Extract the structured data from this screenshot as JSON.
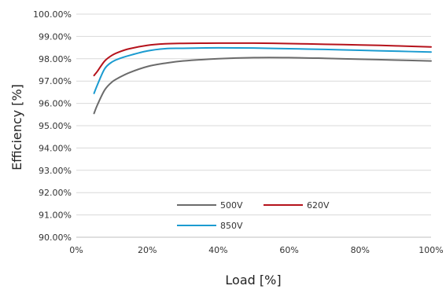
{
  "chart_data": {
    "type": "line",
    "title": "",
    "xlabel": "Load [%]",
    "ylabel": "Efficiency [%]",
    "xlim": [
      0,
      100
    ],
    "ylim": [
      90,
      100
    ],
    "x_ticks": [
      0,
      20,
      40,
      60,
      80,
      100
    ],
    "x_tick_labels": [
      "0%",
      "20%",
      "40%",
      "60%",
      "80%",
      "100%"
    ],
    "y_ticks": [
      90,
      91,
      92,
      93,
      94,
      95,
      96,
      97,
      98,
      99,
      100
    ],
    "y_tick_labels": [
      "90.00%",
      "91.00%",
      "92.00%",
      "93.00%",
      "94.00%",
      "95.00%",
      "96.00%",
      "97.00%",
      "98.00%",
      "99.00%",
      "100.00%"
    ],
    "grid": "horizontal",
    "legend_position": "bottom-center inside plot",
    "series": [
      {
        "name": "500V",
        "color": "#6b6b6b",
        "x": [
          5,
          6,
          8,
          10,
          12,
          15,
          20,
          25,
          30,
          40,
          50,
          60,
          70,
          80,
          90,
          100
        ],
        "y": [
          95.55,
          95.95,
          96.6,
          96.95,
          97.15,
          97.38,
          97.65,
          97.8,
          97.9,
          98.0,
          98.05,
          98.05,
          98.02,
          97.98,
          97.94,
          97.9
        ]
      },
      {
        "name": "620V",
        "color": "#b5121b",
        "x": [
          5,
          6,
          8,
          10,
          12,
          15,
          20,
          25,
          30,
          40,
          50,
          60,
          70,
          80,
          90,
          100
        ],
        "y": [
          97.25,
          97.45,
          97.9,
          98.15,
          98.3,
          98.45,
          98.6,
          98.67,
          98.69,
          98.7,
          98.7,
          98.68,
          98.65,
          98.62,
          98.58,
          98.53
        ]
      },
      {
        "name": "850V",
        "color": "#1b9bd0",
        "x": [
          5,
          6,
          8,
          10,
          12,
          15,
          20,
          25,
          30,
          40,
          50,
          60,
          70,
          80,
          90,
          100
        ],
        "y": [
          96.45,
          96.85,
          97.55,
          97.85,
          98.0,
          98.15,
          98.35,
          98.45,
          98.47,
          98.49,
          98.48,
          98.45,
          98.42,
          98.38,
          98.34,
          98.3
        ]
      }
    ]
  }
}
